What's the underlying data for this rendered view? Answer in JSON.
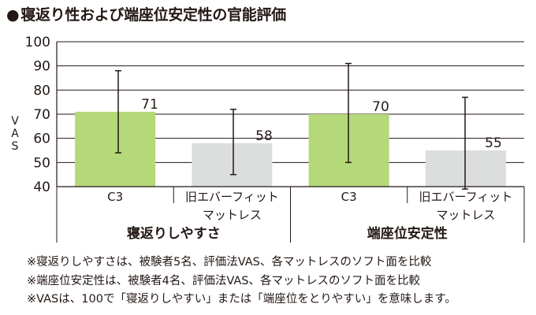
{
  "title_marker": "●",
  "title": "寝返り性および端座位安定性の官能評価",
  "chart_data": {
    "type": "bar",
    "title": "寝返り性および端座位安定性の官能評価",
    "ylabel": "VAS",
    "ylim": [
      40,
      100
    ],
    "yticks": [
      40,
      50,
      60,
      70,
      80,
      90,
      100
    ],
    "grid": true,
    "groups": [
      {
        "label": "寝返りしやすさ",
        "bars": [
          {
            "category": [
              "C3"
            ],
            "value": 71,
            "err_low": 54,
            "err_high": 88,
            "color": "#b5d879"
          },
          {
            "category": [
              "旧エバーフィット",
              "マットレス"
            ],
            "value": 58,
            "err_low": 45,
            "err_high": 72,
            "color": "#dcdddd"
          }
        ]
      },
      {
        "label": "端座位安定性",
        "bars": [
          {
            "category": [
              "C3"
            ],
            "value": 70,
            "err_low": 50,
            "err_high": 91,
            "color": "#b5d879"
          },
          {
            "category": [
              "旧エバーフィット",
              "マットレス"
            ],
            "value": 55,
            "err_low": 39,
            "err_high": 77,
            "color": "#dcdddd"
          }
        ]
      }
    ]
  },
  "notes": [
    "※寝返りしやすさは、被験者5名、評価法VAS、各マットレスのソフト面を比較",
    "※端座位安定性は、被験者4名、評価法VAS、各マットレスのソフト面を比較",
    "※VASは、100で「寝返りしやすい」または「端座位をとりやすい」を意味します。"
  ]
}
